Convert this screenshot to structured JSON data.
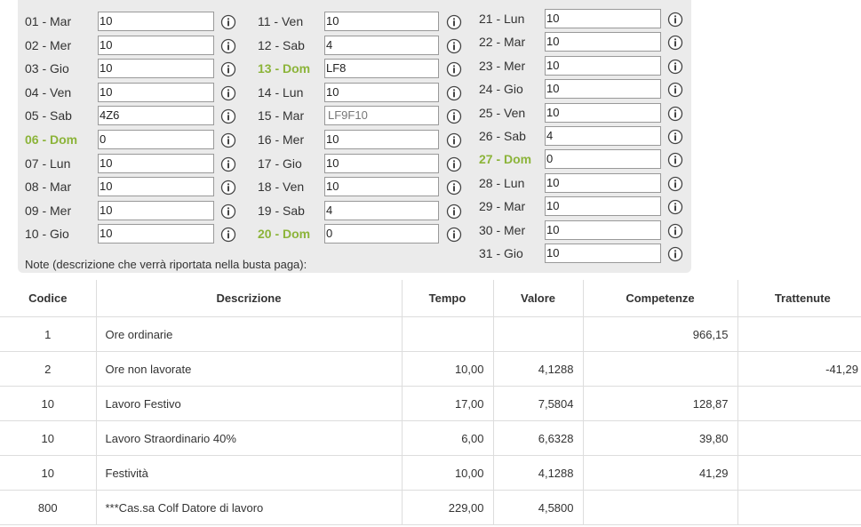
{
  "days": {
    "columns": [
      [
        {
          "label": "01 - Mar",
          "value": "10"
        },
        {
          "label": "02 - Mer",
          "value": "10"
        },
        {
          "label": "03 - Gio",
          "value": "10"
        },
        {
          "label": "04 - Ven",
          "value": "10"
        },
        {
          "label": "05 - Sab",
          "value": "4Z6"
        },
        {
          "label": "06 - Dom",
          "value": "0",
          "color": "#8cb43a"
        },
        {
          "label": "07 - Lun",
          "value": "10"
        },
        {
          "label": "08 - Mar",
          "value": "10"
        },
        {
          "label": "09 - Mer",
          "value": "10"
        },
        {
          "label": "10 - Gio",
          "value": "10"
        }
      ],
      [
        {
          "label": "11 - Ven",
          "value": "10"
        },
        {
          "label": "12 - Sab",
          "value": "4"
        },
        {
          "label": "13 - Dom",
          "value": "LF8",
          "color": "#8cb43a"
        },
        {
          "label": "14 - Lun",
          "value": "10"
        },
        {
          "label": "15 - Mar",
          "placeholder": "LF9F10"
        },
        {
          "label": "16 - Mer",
          "value": "10"
        },
        {
          "label": "17 - Gio",
          "value": "10"
        },
        {
          "label": "18 - Ven",
          "value": "10"
        },
        {
          "label": "19 - Sab",
          "value": "4"
        },
        {
          "label": "20 - Dom",
          "value": "0",
          "color": "#8cb43a"
        }
      ],
      [
        {
          "label": "21 - Lun",
          "value": "10"
        },
        {
          "label": "22 - Mar",
          "value": "10"
        },
        {
          "label": "23 - Mer",
          "value": "10"
        },
        {
          "label": "24 - Gio",
          "value": "10"
        },
        {
          "label": "25 - Ven",
          "value": "10"
        },
        {
          "label": "26 - Sab",
          "value": "4"
        },
        {
          "label": "27 - Dom",
          "value": "0",
          "color": "#8cb43a"
        },
        {
          "label": "28 - Lun",
          "value": "10"
        },
        {
          "label": "29 - Mar",
          "value": "10"
        },
        {
          "label": "30 - Mer",
          "value": "10"
        },
        {
          "label": "31 - Gio",
          "value": "10"
        }
      ]
    ],
    "note_label": "Note (descrizione che verrà riportata nella busta paga):"
  },
  "table": {
    "headers": [
      "Codice",
      "Descrizione",
      "Tempo",
      "Valore",
      "Competenze",
      "Trattenute"
    ],
    "rows": [
      [
        "1",
        "Ore ordinarie",
        null,
        null,
        "966,15",
        null
      ],
      [
        "2",
        "Ore non lavorate",
        "10,00",
        "4,1288",
        null,
        "-41,29"
      ],
      [
        "10",
        "Lavoro Festivo",
        "17,00",
        "7,5804",
        "128,87",
        null
      ],
      [
        "10",
        "Lavoro Straordinario 40%",
        "6,00",
        "6,6328",
        "39,80",
        null
      ],
      [
        "10",
        "Festività",
        "10,00",
        "4,1288",
        "41,29",
        null
      ],
      [
        "800",
        "***Cas.sa Colf Datore di lavoro",
        "229,00",
        "4,5800",
        null,
        null
      ]
    ]
  }
}
